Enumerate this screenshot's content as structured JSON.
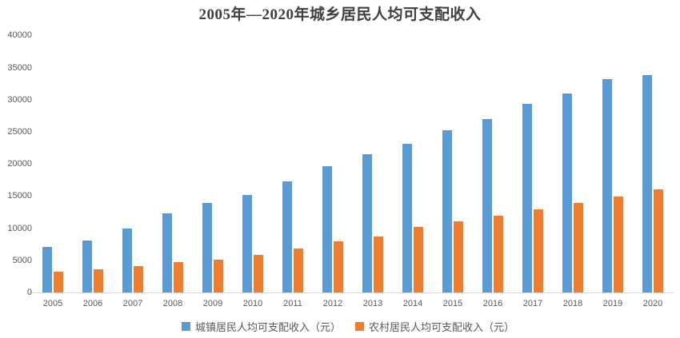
{
  "chart_data": {
    "type": "bar",
    "title": "2005年—2020年城乡居民人均可支配收入",
    "categories": [
      "2005",
      "2006",
      "2007",
      "2008",
      "2009",
      "2010",
      "2011",
      "2012",
      "2013",
      "2014",
      "2015",
      "2016",
      "2017",
      "2018",
      "2019",
      "2020"
    ],
    "series": [
      {
        "name": "城镇居民人均可支配收入（元）",
        "color": "#5B9BD5",
        "values": [
          7100,
          8100,
          10000,
          12300,
          13900,
          15200,
          17300,
          19600,
          21450,
          23100,
          25250,
          27000,
          29350,
          30900,
          33250,
          33850
        ]
      },
      {
        "name": "农村居民人均可支配收入（元）",
        "color": "#ED7D31",
        "values": [
          3200,
          3600,
          4100,
          4700,
          5100,
          5900,
          6800,
          7900,
          8700,
          10150,
          11100,
          11950,
          12950,
          13900,
          14950,
          16100
        ]
      }
    ],
    "xlabel": "",
    "ylabel": "",
    "ylim": [
      0,
      40000
    ],
    "y_ticks": [
      0,
      5000,
      10000,
      15000,
      20000,
      25000,
      30000,
      35000,
      40000
    ],
    "grid": false,
    "legend_position": "bottom"
  }
}
